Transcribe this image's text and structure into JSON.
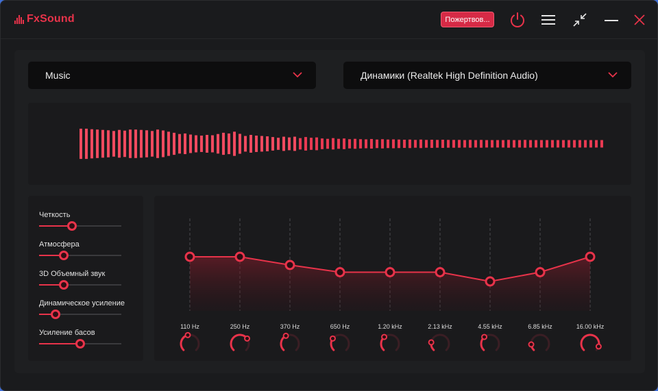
{
  "app": {
    "name": "FxSound"
  },
  "titlebar": {
    "donate_label": "Пожертвов..."
  },
  "colors": {
    "accent": "#e8334a",
    "panel": "#1e1f21",
    "background": "#1a1b1d"
  },
  "icons": [
    "power-icon",
    "menu-icon",
    "minimize-view-icon",
    "minimize-icon",
    "close-icon",
    "chevron-down-icon"
  ],
  "preset": {
    "selected": "Music"
  },
  "output": {
    "selected": "Динамики (Realtek High Definition Audio)"
  },
  "visualizer": {
    "levels": [
      0.85,
      0.85,
      0.82,
      0.8,
      0.78,
      0.76,
      0.72,
      0.78,
      0.74,
      0.8,
      0.8,
      0.78,
      0.76,
      0.72,
      0.8,
      0.75,
      0.68,
      0.62,
      0.55,
      0.58,
      0.52,
      0.48,
      0.46,
      0.5,
      0.48,
      0.55,
      0.62,
      0.58,
      0.68,
      0.56,
      0.44,
      0.5,
      0.46,
      0.44,
      0.42,
      0.38,
      0.34,
      0.4,
      0.36,
      0.4,
      0.32,
      0.38,
      0.34,
      0.36,
      0.3,
      0.28,
      0.32,
      0.28,
      0.3,
      0.26,
      0.28,
      0.26,
      0.25,
      0.27,
      0.24,
      0.26,
      0.24,
      0.25,
      0.24,
      0.23,
      0.24,
      0.22,
      0.24,
      0.22,
      0.23,
      0.22,
      0.23,
      0.22,
      0.22,
      0.22,
      0.21,
      0.22,
      0.21,
      0.22,
      0.21,
      0.21,
      0.21,
      0.21,
      0.22,
      0.21,
      0.21,
      0.22,
      0.21,
      0.21,
      0.21,
      0.21,
      0.21,
      0.21,
      0.21,
      0.21,
      0.21,
      0.21,
      0.21,
      0.21,
      0.21,
      0.21
    ]
  },
  "effects": [
    {
      "label": "Четкость",
      "value": 0.4
    },
    {
      "label": "Атмосфера",
      "value": 0.3
    },
    {
      "label": "3D Объемный звук",
      "value": 0.3
    },
    {
      "label": "Динамическое усиление",
      "value": 0.2
    },
    {
      "label": "Усиление басов",
      "value": 0.5
    }
  ],
  "equalizer": {
    "bands": [
      {
        "freq": "110 Hz",
        "gain": 0.0
      },
      {
        "freq": "250 Hz",
        "gain": 0.0
      },
      {
        "freq": "370 Hz",
        "gain": -0.08
      },
      {
        "freq": "650 Hz",
        "gain": -0.15
      },
      {
        "freq": "1.20 kHz",
        "gain": -0.15
      },
      {
        "freq": "2.13 kHz",
        "gain": -0.15
      },
      {
        "freq": "4.55 kHz",
        "gain": -0.24
      },
      {
        "freq": "6.85 kHz",
        "gain": -0.15
      },
      {
        "freq": "16.00 kHz",
        "gain": 0.0
      }
    ],
    "knob_levels": [
      0.45,
      0.7,
      0.4,
      0.3,
      0.35,
      0.2,
      0.35,
      0.15,
      0.9
    ]
  }
}
